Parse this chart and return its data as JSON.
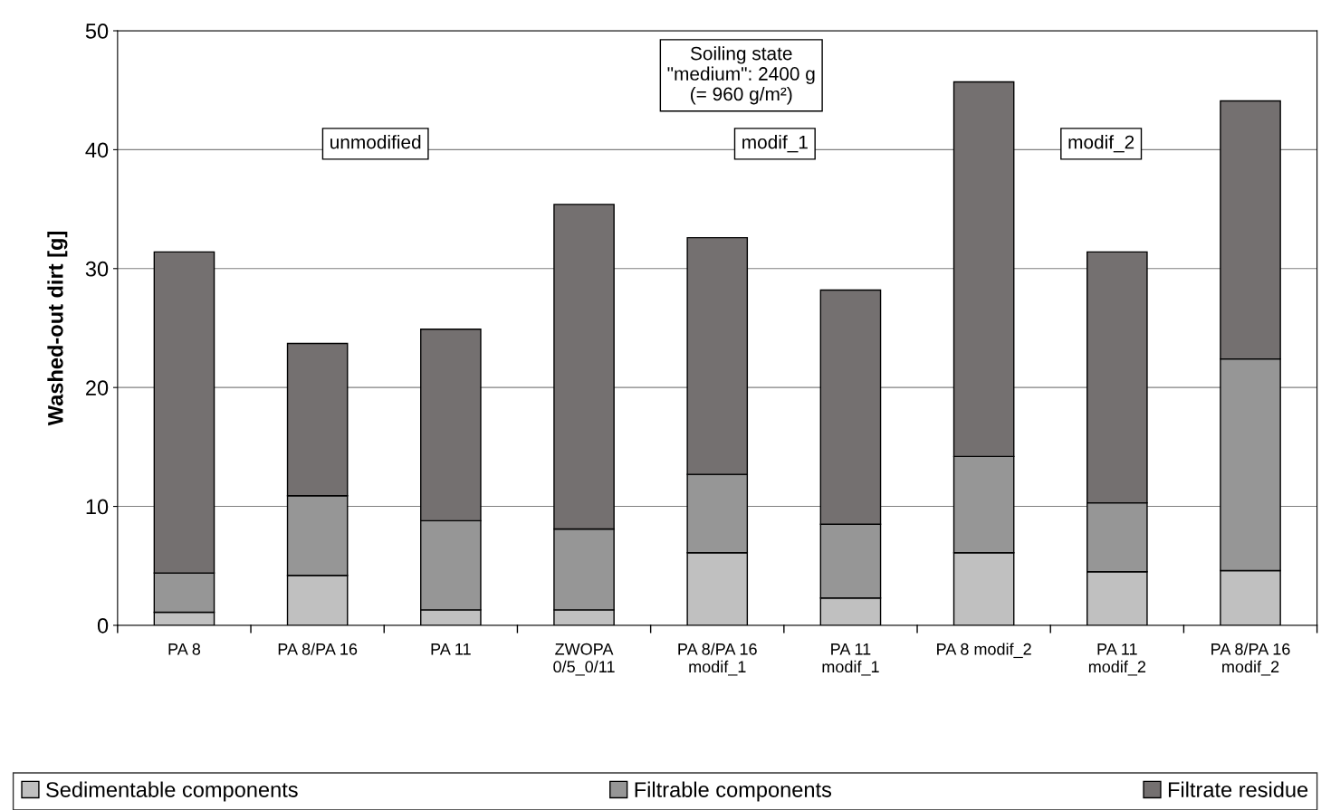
{
  "chart_data": {
    "type": "bar",
    "stacked": true,
    "ylabel": "Washed-out dirt [g]",
    "categories": [
      "PA 8",
      "PA 8/PA 16",
      "PA 11",
      "ZWOPA\n0/5_0/11",
      "PA 8/PA 16\nmodif_1",
      "PA 11\nmodif_1",
      "PA 8 modif_2",
      "PA 11\nmodif_2",
      "PA 8/PA 16\nmodif_2"
    ],
    "series": [
      {
        "name": "Sedimentable components",
        "color": "#c0c0c0",
        "values": [
          1.1,
          4.2,
          1.3,
          1.3,
          6.1,
          2.3,
          6.1,
          4.5,
          4.6
        ]
      },
      {
        "name": "Filtrable components",
        "color": "#969696",
        "values": [
          3.3,
          6.7,
          7.5,
          6.8,
          6.6,
          6.2,
          8.1,
          5.8,
          17.8
        ]
      },
      {
        "name": "Filtrate residue",
        "color": "#747070",
        "values": [
          27.0,
          12.8,
          16.1,
          27.3,
          19.9,
          19.7,
          31.5,
          21.1,
          21.7
        ]
      }
    ],
    "ylim": [
      0,
      50
    ],
    "yticks": [
      0,
      10,
      20,
      30,
      40,
      50
    ],
    "grid": "y",
    "legend": "bottom",
    "annotations": [
      "Soiling state\n\"medium\": 2400 g\n(= 960 g/m²)",
      "unmodified",
      "modif_1",
      "modif_2"
    ]
  }
}
